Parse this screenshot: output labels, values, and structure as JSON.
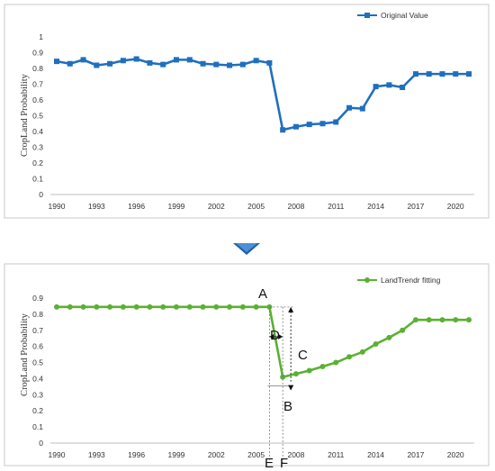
{
  "chart_data": [
    {
      "type": "line",
      "legend": "Original Value",
      "legend_position": "top-right",
      "ylabel": "CropLand  Probability",
      "xlabel": "",
      "color": "#1f6fbf",
      "marker": "square",
      "ylim": [
        0,
        1
      ],
      "yticks": [
        "0",
        "0.1",
        "0.2",
        "0.3",
        "0.4",
        "0.5",
        "0.6",
        "0.7",
        "0.8",
        "0.9",
        "1"
      ],
      "xticks": [
        "1990",
        "1993",
        "1996",
        "1999",
        "2002",
        "2005",
        "2008",
        "2011",
        "2014",
        "2017",
        "2020"
      ],
      "x": [
        1990,
        1991,
        1992,
        1993,
        1994,
        1995,
        1996,
        1997,
        1998,
        1999,
        2000,
        2001,
        2002,
        2003,
        2004,
        2005,
        2006,
        2007,
        2008,
        2009,
        2010,
        2011,
        2012,
        2013,
        2014,
        2015,
        2016,
        2017,
        2018,
        2019,
        2020,
        2021
      ],
      "values": [
        0.845,
        0.83,
        0.855,
        0.82,
        0.83,
        0.85,
        0.86,
        0.835,
        0.825,
        0.855,
        0.855,
        0.83,
        0.825,
        0.82,
        0.825,
        0.85,
        0.835,
        0.41,
        0.43,
        0.445,
        0.45,
        0.46,
        0.55,
        0.545,
        0.685,
        0.695,
        0.68,
        0.765,
        0.765,
        0.765,
        0.765,
        0.765
      ]
    },
    {
      "type": "line",
      "legend": "LandTrendr fitting",
      "legend_position": "top-right",
      "ylabel": "CropLand  Probability",
      "xlabel": "",
      "color": "#5bb033",
      "marker": "circle",
      "ylim": [
        0,
        0.9
      ],
      "yticks": [
        "0",
        "0.1",
        "0.2",
        "0.3",
        "0.4",
        "0.5",
        "0.6",
        "0.7",
        "0.8",
        "0.9"
      ],
      "xticks": [
        "1990",
        "1993",
        "1996",
        "1999",
        "2002",
        "2005",
        "2008",
        "2011",
        "2014",
        "2017",
        "2020"
      ],
      "x": [
        1990,
        1991,
        1992,
        1993,
        1994,
        1995,
        1996,
        1997,
        1998,
        1999,
        2000,
        2001,
        2002,
        2003,
        2004,
        2005,
        2006,
        2007,
        2008,
        2009,
        2010,
        2011,
        2012,
        2013,
        2014,
        2015,
        2016,
        2017,
        2018,
        2019,
        2020,
        2021
      ],
      "values": [
        0.845,
        0.845,
        0.845,
        0.845,
        0.845,
        0.845,
        0.845,
        0.845,
        0.845,
        0.845,
        0.845,
        0.845,
        0.845,
        0.845,
        0.845,
        0.845,
        0.845,
        0.41,
        0.43,
        0.45,
        0.475,
        0.5,
        0.535,
        0.565,
        0.615,
        0.655,
        0.7,
        0.765,
        0.765,
        0.765,
        0.765,
        0.765
      ],
      "annotations": [
        "A",
        "B",
        "C",
        "D",
        "E",
        "F"
      ]
    }
  ],
  "colors": {
    "arrow": "#2e6dbf",
    "frame": "#c8c8c8"
  }
}
